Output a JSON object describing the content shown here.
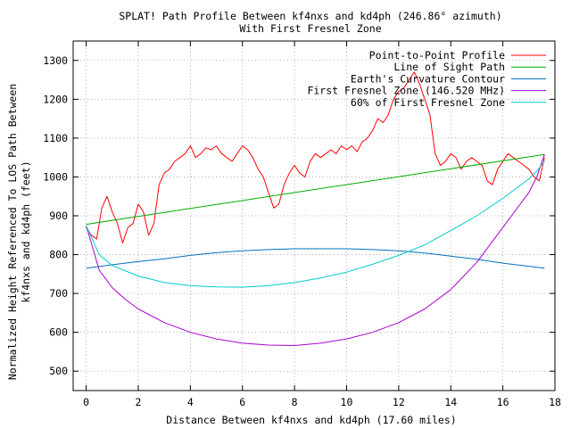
{
  "chart_data": {
    "type": "line",
    "title": "SPLAT! Path Profile Between kf4nxs and kd4ph (246.86° azimuth)",
    "subtitle": "With First Fresnel Zone",
    "xlabel": "Distance Between kf4nxs and kd4ph (17.60 miles)",
    "ylabel_line1": "Normalized Height Referenced To LOS Path Between",
    "ylabel_line2": "kf4nxs and kd4ph (feet)",
    "xlim": [
      -0.5,
      18
    ],
    "ylim": [
      450,
      1350
    ],
    "x_ticks": [
      0,
      2,
      4,
      6,
      8,
      10,
      12,
      14,
      16,
      18
    ],
    "x_tick_labels": [
      "0",
      "2",
      "4",
      "6",
      "8",
      "10",
      "12",
      "14",
      "16",
      "18"
    ],
    "y_ticks": [
      500,
      600,
      700,
      800,
      900,
      1000,
      1100,
      1200,
      1300
    ],
    "y_tick_labels": [
      "500",
      "600",
      "700",
      "800",
      "900",
      "1000",
      "1100",
      "1200",
      "1300"
    ],
    "grid": true,
    "legend_position": "top-right",
    "series": [
      {
        "name": "Point-to-Point Profile",
        "color": "#ff0000",
        "x": [
          0,
          0.2,
          0.4,
          0.6,
          0.8,
          1.0,
          1.2,
          1.4,
          1.6,
          1.8,
          2.0,
          2.2,
          2.4,
          2.6,
          2.8,
          3.0,
          3.2,
          3.4,
          3.6,
          3.8,
          4.0,
          4.2,
          4.4,
          4.6,
          4.8,
          5.0,
          5.2,
          5.4,
          5.6,
          5.8,
          6.0,
          6.2,
          6.4,
          6.6,
          6.8,
          7.0,
          7.2,
          7.4,
          7.6,
          7.8,
          8.0,
          8.2,
          8.4,
          8.6,
          8.8,
          9.0,
          9.2,
          9.4,
          9.6,
          9.8,
          10.0,
          10.2,
          10.4,
          10.6,
          10.8,
          11.0,
          11.2,
          11.4,
          11.6,
          11.8,
          12.0,
          12.2,
          12.4,
          12.6,
          12.8,
          13.0,
          13.2,
          13.4,
          13.6,
          13.8,
          14.0,
          14.2,
          14.4,
          14.6,
          14.8,
          15.0,
          15.2,
          15.4,
          15.6,
          15.8,
          16.0,
          16.2,
          16.4,
          16.6,
          16.8,
          17.0,
          17.2,
          17.4,
          17.6
        ],
        "y": [
          870,
          850,
          840,
          920,
          950,
          910,
          880,
          830,
          870,
          880,
          930,
          910,
          850,
          880,
          980,
          1010,
          1020,
          1040,
          1050,
          1060,
          1080,
          1050,
          1060,
          1075,
          1070,
          1080,
          1060,
          1050,
          1040,
          1060,
          1080,
          1070,
          1050,
          1020,
          1000,
          960,
          920,
          930,
          980,
          1010,
          1030,
          1010,
          1000,
          1040,
          1060,
          1050,
          1060,
          1070,
          1060,
          1080,
          1070,
          1080,
          1065,
          1090,
          1100,
          1120,
          1150,
          1140,
          1160,
          1200,
          1220,
          1230,
          1250,
          1270,
          1240,
          1200,
          1160,
          1060,
          1030,
          1040,
          1060,
          1050,
          1020,
          1040,
          1050,
          1040,
          1030,
          990,
          980,
          1020,
          1040,
          1060,
          1050,
          1040,
          1030,
          1020,
          1000,
          990,
          1050
        ]
      },
      {
        "name": "Line of Sight Path",
        "color": "#00aa00",
        "x": [
          0,
          17.6
        ],
        "y": [
          878,
          1058
        ]
      },
      {
        "name": "Earth's Curvature Contour",
        "color": "#0070c0",
        "x": [
          0,
          1,
          2,
          3,
          4,
          5,
          6,
          7,
          8,
          9,
          10,
          11,
          12,
          13,
          14,
          15,
          16,
          17,
          17.6
        ],
        "y": [
          765,
          774,
          782,
          789,
          798,
          805,
          810,
          813,
          815,
          815,
          815,
          813,
          810,
          804,
          796,
          788,
          778,
          770,
          765
        ]
      },
      {
        "name": "First Fresnel Zone (146.520 MHz)",
        "color": "#aa00cc",
        "x": [
          0,
          0.5,
          1,
          1.5,
          2,
          3,
          4,
          5,
          6,
          7,
          8,
          9,
          10,
          11,
          12,
          13,
          14,
          15,
          16,
          16.5,
          17,
          17.3,
          17.6
        ],
        "y": [
          875,
          760,
          715,
          685,
          660,
          625,
          600,
          583,
          572,
          567,
          566,
          572,
          583,
          600,
          625,
          660,
          710,
          780,
          870,
          915,
          960,
          1000,
          1058
        ]
      },
      {
        "name": "60% of First Fresnel Zone",
        "color": "#00cccc",
        "x": [
          0,
          0.5,
          1,
          2,
          3,
          4,
          5,
          6,
          7,
          8,
          9,
          10,
          11,
          12,
          13,
          14,
          15,
          16,
          16.5,
          17,
          17.3,
          17.6
        ],
        "y": [
          875,
          800,
          772,
          745,
          728,
          720,
          717,
          716,
          720,
          728,
          740,
          755,
          775,
          798,
          825,
          862,
          900,
          945,
          970,
          995,
          1015,
          1040
        ]
      }
    ]
  }
}
